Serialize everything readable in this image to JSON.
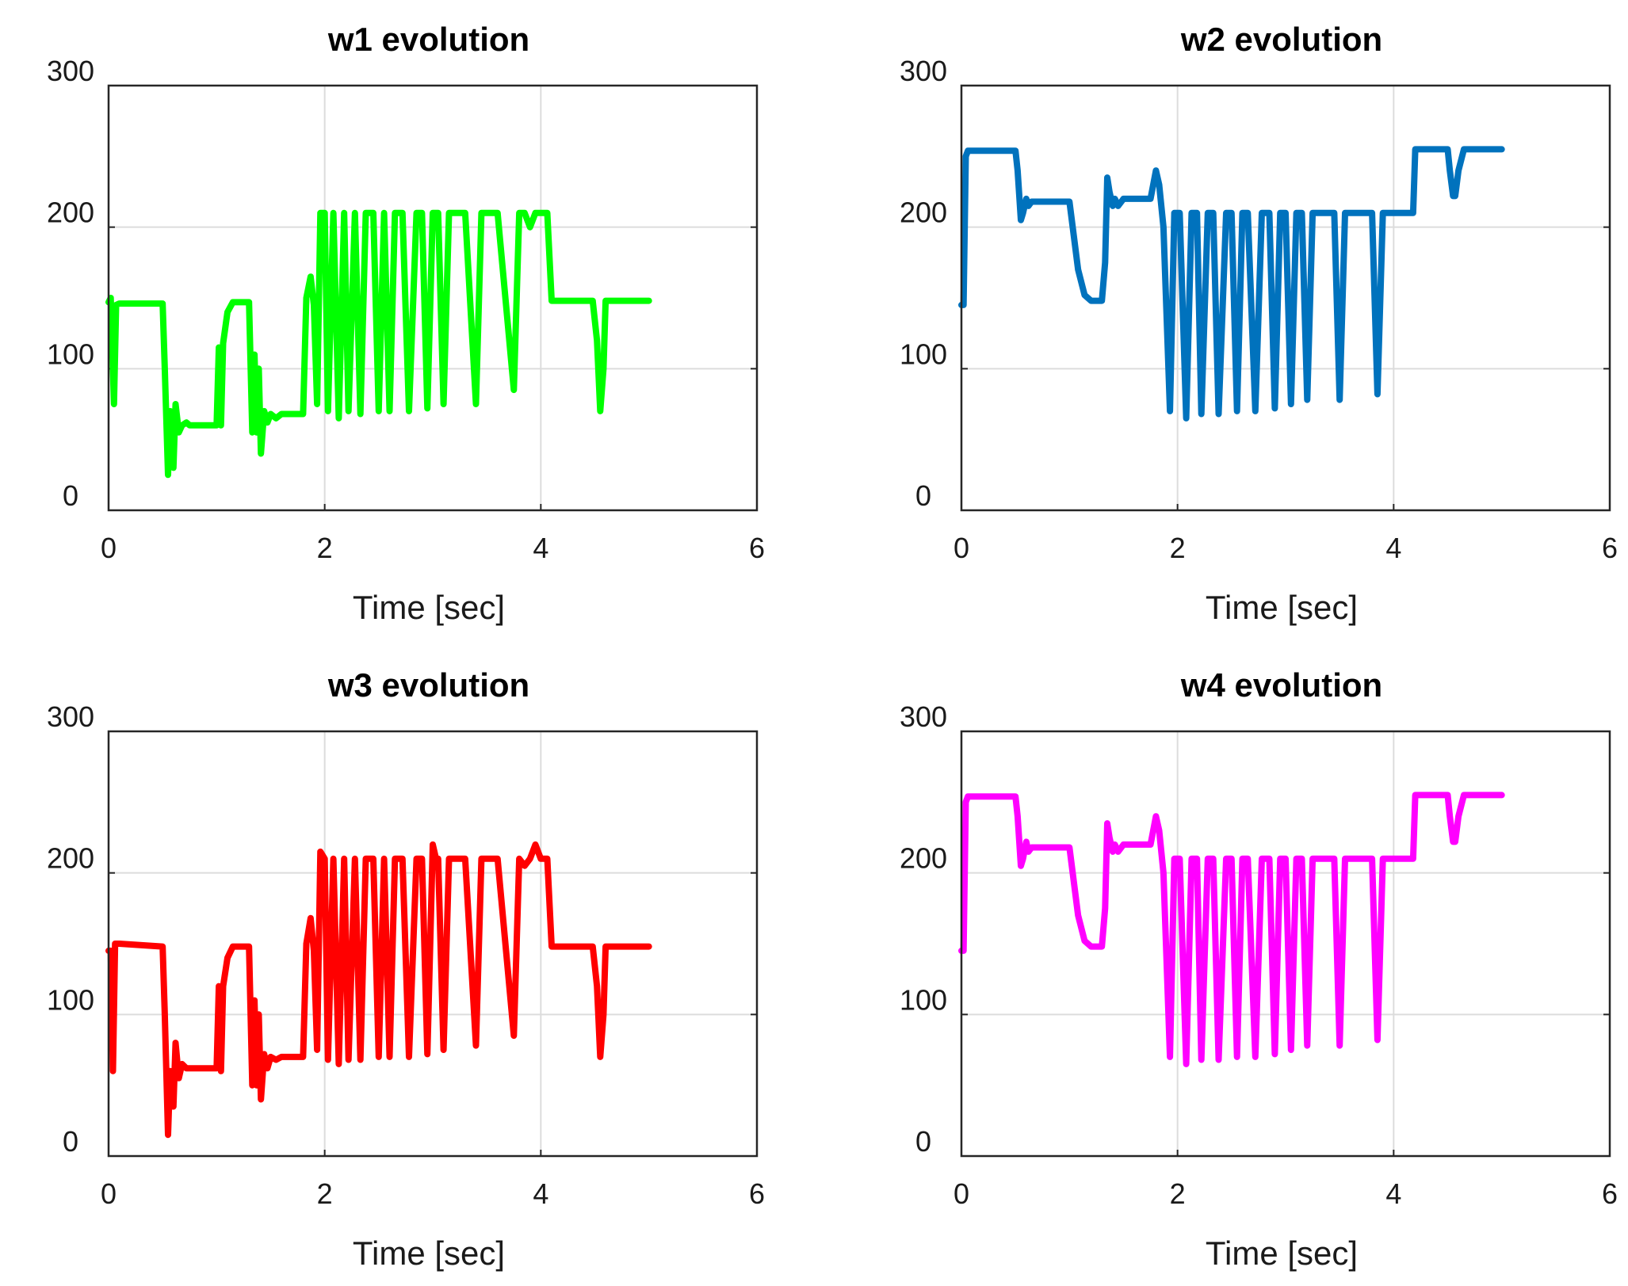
{
  "chart_data": [
    {
      "type": "line",
      "title": "w1 evolution",
      "xlabel": "Time [sec]",
      "ylabel": "",
      "xlim": [
        0,
        6
      ],
      "ylim": [
        0,
        300
      ],
      "xticks": [
        "0",
        "2",
        "4",
        "6"
      ],
      "yticks": [
        "0",
        "100",
        "200",
        "300"
      ],
      "grid": true,
      "color": "#00ff00",
      "series": [
        {
          "name": "w1",
          "x": [
            0,
            0.02,
            0.05,
            0.07,
            0.1,
            0.5,
            0.52,
            0.55,
            0.57,
            0.6,
            0.62,
            0.65,
            0.68,
            0.72,
            0.75,
            1.0,
            1.02,
            1.04,
            1.06,
            1.1,
            1.15,
            1.2,
            1.25,
            1.3,
            1.33,
            1.35,
            1.37,
            1.39,
            1.41,
            1.44,
            1.47,
            1.5,
            1.55,
            1.6,
            1.65,
            1.8,
            1.83,
            1.87,
            1.9,
            1.93,
            1.96,
            2.0,
            2.03,
            2.08,
            2.13,
            2.18,
            2.22,
            2.28,
            2.33,
            2.38,
            2.45,
            2.5,
            2.55,
            2.6,
            2.65,
            2.72,
            2.78,
            2.85,
            2.9,
            2.95,
            3.0,
            3.05,
            3.1,
            3.15,
            3.2,
            3.25,
            3.3,
            3.4,
            3.45,
            3.5,
            3.55,
            3.6,
            3.75,
            3.8,
            3.85,
            3.9,
            3.95,
            4.03,
            4.06,
            4.1,
            4.15,
            4.2,
            4.22,
            4.48,
            4.52,
            4.55,
            4.58,
            4.6,
            4.63,
            4.65,
            5.0
          ],
          "values": [
            147,
            150,
            75,
            145,
            146,
            146,
            100,
            25,
            70,
            30,
            75,
            55,
            60,
            62,
            60,
            60,
            115,
            60,
            118,
            140,
            147,
            147,
            147,
            147,
            55,
            110,
            55,
            100,
            40,
            70,
            62,
            68,
            65,
            68,
            68,
            68,
            150,
            165,
            145,
            75,
            210,
            210,
            70,
            210,
            65,
            210,
            70,
            210,
            68,
            210,
            210,
            70,
            210,
            70,
            210,
            210,
            70,
            210,
            210,
            72,
            210,
            210,
            75,
            210,
            210,
            210,
            210,
            75,
            210,
            210,
            210,
            210,
            85,
            210,
            210,
            200,
            210,
            210,
            210,
            148,
            148,
            148,
            148,
            148,
            120,
            70,
            100,
            148,
            148,
            148,
            148
          ]
        }
      ]
    },
    {
      "type": "line",
      "title": "w2 evolution",
      "xlabel": "Time [sec]",
      "ylabel": "",
      "xlim": [
        0,
        6
      ],
      "ylim": [
        0,
        300
      ],
      "xticks": [
        "0",
        "2",
        "4",
        "6"
      ],
      "yticks": [
        "0",
        "100",
        "200",
        "300"
      ],
      "grid": true,
      "color": "#0072bd",
      "series": [
        {
          "name": "w2",
          "x": [
            0,
            0.02,
            0.04,
            0.06,
            0.1,
            0.5,
            0.52,
            0.55,
            0.57,
            0.6,
            0.62,
            0.65,
            0.68,
            0.7,
            1.0,
            1.03,
            1.08,
            1.14,
            1.2,
            1.3,
            1.33,
            1.35,
            1.37,
            1.4,
            1.42,
            1.45,
            1.5,
            1.55,
            1.75,
            1.8,
            1.83,
            1.87,
            1.93,
            1.97,
            2.02,
            2.08,
            2.13,
            2.18,
            2.22,
            2.28,
            2.33,
            2.38,
            2.45,
            2.5,
            2.55,
            2.6,
            2.65,
            2.72,
            2.78,
            2.85,
            2.9,
            2.95,
            3.0,
            3.05,
            3.1,
            3.15,
            3.2,
            3.25,
            3.3,
            3.4,
            3.45,
            3.5,
            3.55,
            3.6,
            3.75,
            3.8,
            3.85,
            3.9,
            3.95,
            4.0,
            4.18,
            4.2,
            4.23,
            4.4,
            4.45,
            4.5,
            4.52,
            4.55,
            4.57,
            4.6,
            4.65,
            5.0
          ],
          "values": [
            145,
            145,
            250,
            254,
            254,
            254,
            240,
            205,
            210,
            220,
            215,
            218,
            218,
            218,
            218,
            200,
            170,
            152,
            148,
            148,
            175,
            235,
            225,
            215,
            220,
            215,
            220,
            220,
            220,
            240,
            230,
            200,
            70,
            210,
            210,
            65,
            210,
            210,
            68,
            210,
            210,
            68,
            210,
            210,
            70,
            210,
            210,
            70,
            210,
            210,
            72,
            210,
            210,
            75,
            210,
            210,
            78,
            210,
            210,
            210,
            210,
            78,
            210,
            210,
            210,
            210,
            82,
            210,
            210,
            210,
            210,
            255,
            255,
            255,
            255,
            255,
            240,
            222,
            222,
            240,
            255,
            255
          ]
        }
      ]
    },
    {
      "type": "line",
      "title": "w3 evolution",
      "xlabel": "Time [sec]",
      "ylabel": "",
      "xlim": [
        0,
        6
      ],
      "ylim": [
        0,
        300
      ],
      "xticks": [
        "0",
        "2",
        "4",
        "6"
      ],
      "yticks": [
        "0",
        "100",
        "200",
        "300"
      ],
      "grid": true,
      "color": "#ff0000",
      "series": [
        {
          "name": "w3",
          "x": [
            0,
            0.02,
            0.04,
            0.06,
            0.1,
            0.5,
            0.52,
            0.55,
            0.57,
            0.6,
            0.62,
            0.65,
            0.68,
            0.72,
            0.75,
            1.0,
            1.02,
            1.04,
            1.06,
            1.1,
            1.15,
            1.2,
            1.25,
            1.3,
            1.33,
            1.35,
            1.37,
            1.39,
            1.41,
            1.44,
            1.47,
            1.5,
            1.55,
            1.6,
            1.65,
            1.8,
            1.83,
            1.87,
            1.9,
            1.93,
            1.96,
            2.0,
            2.03,
            2.08,
            2.13,
            2.18,
            2.22,
            2.28,
            2.33,
            2.38,
            2.45,
            2.5,
            2.55,
            2.6,
            2.65,
            2.72,
            2.78,
            2.85,
            2.9,
            2.95,
            3.0,
            3.03,
            3.05,
            3.1,
            3.15,
            3.2,
            3.25,
            3.3,
            3.4,
            3.45,
            3.5,
            3.55,
            3.6,
            3.75,
            3.8,
            3.85,
            3.9,
            3.95,
            4.0,
            4.02,
            4.06,
            4.1,
            4.15,
            4.2,
            4.22,
            4.48,
            4.52,
            4.55,
            4.58,
            4.6,
            4.63,
            4.65,
            5.0
          ],
          "values": [
            145,
            145,
            60,
            150,
            150,
            148,
            100,
            15,
            60,
            35,
            80,
            55,
            65,
            62,
            62,
            62,
            120,
            60,
            120,
            140,
            148,
            148,
            148,
            148,
            50,
            110,
            50,
            100,
            40,
            72,
            62,
            70,
            68,
            70,
            70,
            70,
            150,
            168,
            145,
            75,
            215,
            210,
            68,
            210,
            65,
            210,
            68,
            210,
            68,
            210,
            210,
            70,
            210,
            70,
            210,
            210,
            70,
            210,
            210,
            72,
            220,
            210,
            210,
            75,
            210,
            210,
            210,
            210,
            78,
            210,
            210,
            210,
            210,
            85,
            210,
            205,
            210,
            220,
            210,
            210,
            210,
            148,
            148,
            148,
            148,
            148,
            120,
            70,
            100,
            148,
            148,
            148,
            148
          ]
        }
      ]
    },
    {
      "type": "line",
      "title": "w4 evolution",
      "xlabel": "Time [sec]",
      "ylabel": "",
      "xlim": [
        0,
        6
      ],
      "ylim": [
        0,
        300
      ],
      "xticks": [
        "0",
        "2",
        "4",
        "6"
      ],
      "yticks": [
        "0",
        "100",
        "200",
        "300"
      ],
      "grid": true,
      "color": "#ff00ff",
      "series": [
        {
          "name": "w4",
          "x": [
            0,
            0.02,
            0.04,
            0.06,
            0.1,
            0.5,
            0.52,
            0.55,
            0.57,
            0.6,
            0.62,
            0.65,
            0.68,
            0.7,
            1.0,
            1.03,
            1.08,
            1.14,
            1.2,
            1.3,
            1.33,
            1.35,
            1.37,
            1.4,
            1.42,
            1.45,
            1.5,
            1.55,
            1.75,
            1.8,
            1.83,
            1.87,
            1.93,
            1.97,
            2.02,
            2.08,
            2.13,
            2.18,
            2.22,
            2.28,
            2.33,
            2.38,
            2.45,
            2.5,
            2.55,
            2.6,
            2.65,
            2.72,
            2.78,
            2.85,
            2.9,
            2.95,
            3.0,
            3.05,
            3.1,
            3.15,
            3.2,
            3.25,
            3.3,
            3.4,
            3.45,
            3.5,
            3.55,
            3.6,
            3.75,
            3.8,
            3.85,
            3.9,
            3.95,
            4.0,
            4.18,
            4.2,
            4.23,
            4.4,
            4.45,
            4.5,
            4.52,
            4.55,
            4.57,
            4.6,
            4.65,
            5.0
          ],
          "values": [
            145,
            145,
            250,
            254,
            254,
            254,
            240,
            205,
            210,
            222,
            215,
            218,
            218,
            218,
            218,
            200,
            170,
            152,
            148,
            148,
            175,
            235,
            225,
            215,
            220,
            215,
            220,
            220,
            220,
            240,
            230,
            200,
            70,
            210,
            210,
            65,
            210,
            210,
            68,
            210,
            210,
            68,
            210,
            210,
            70,
            210,
            210,
            70,
            210,
            210,
            72,
            210,
            210,
            75,
            210,
            210,
            78,
            210,
            210,
            210,
            210,
            78,
            210,
            210,
            210,
            210,
            82,
            210,
            210,
            210,
            210,
            255,
            255,
            255,
            255,
            255,
            240,
            222,
            222,
            240,
            255,
            255
          ]
        }
      ]
    }
  ]
}
